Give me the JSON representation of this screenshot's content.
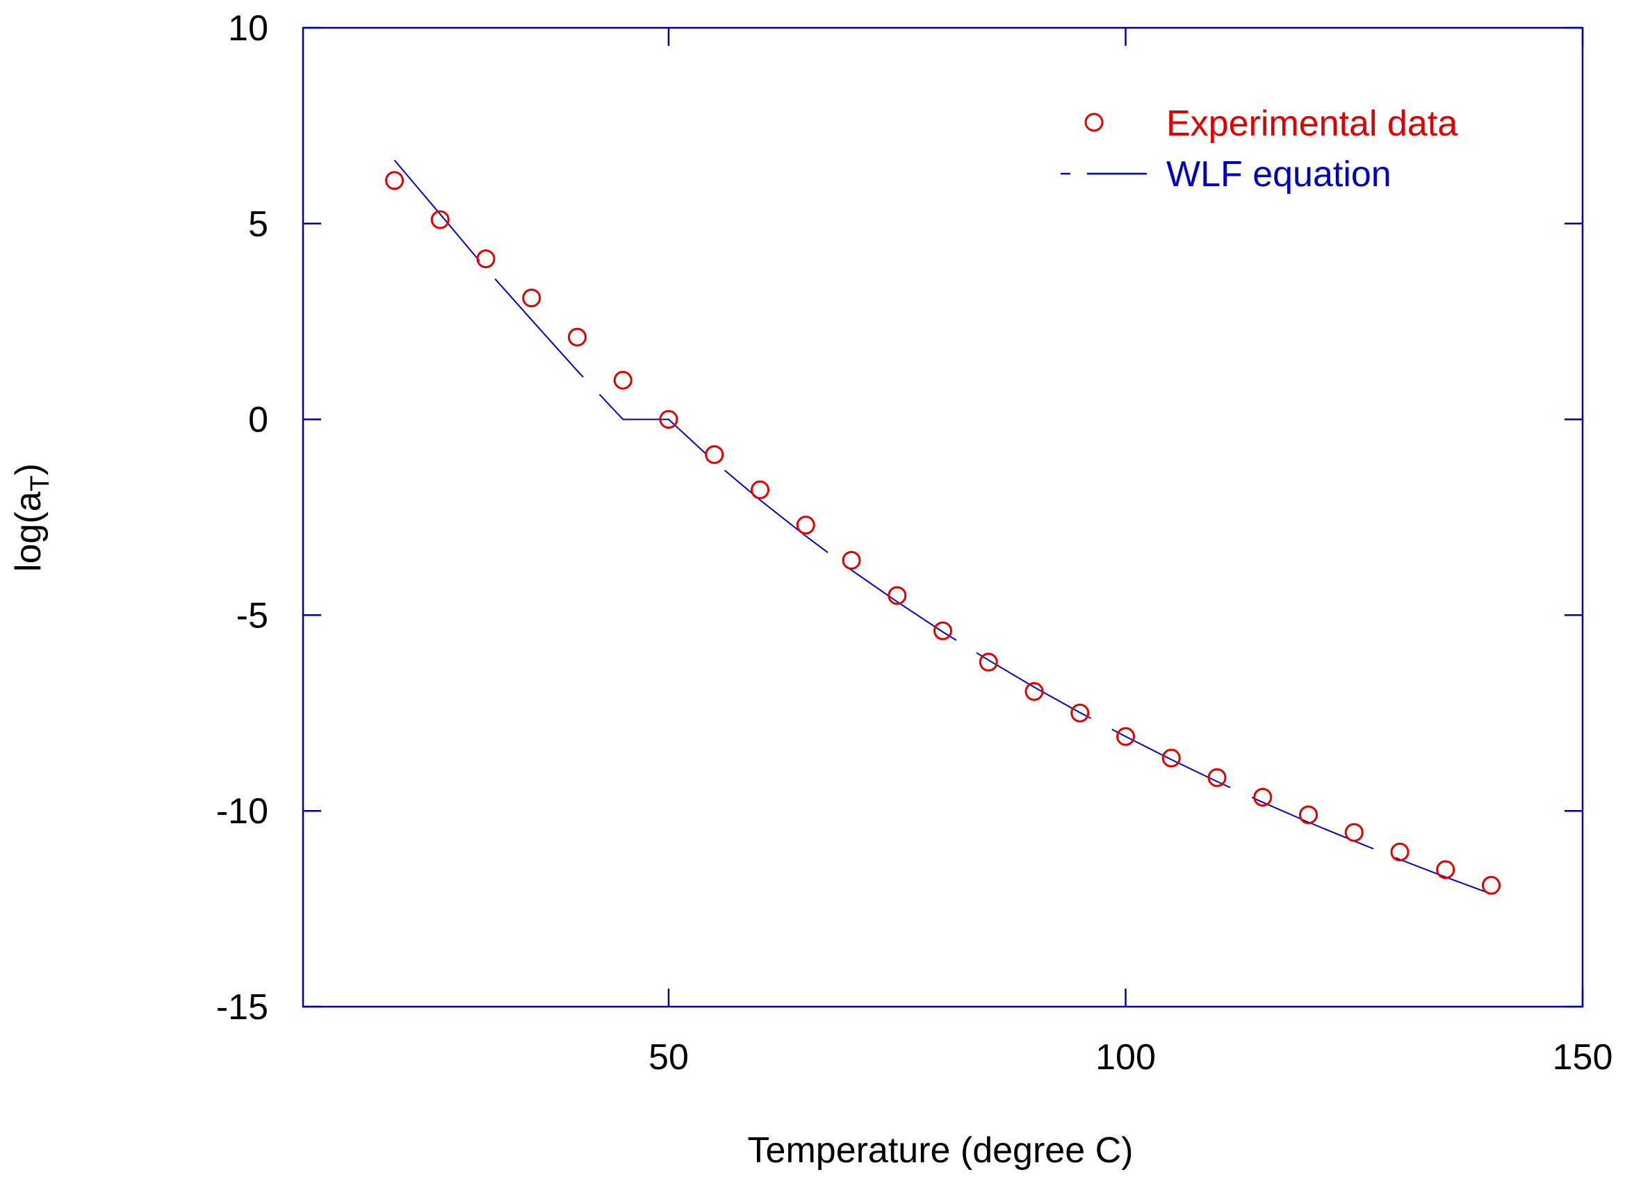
{
  "chart_data": {
    "type": "scatter",
    "title": "",
    "xlabel": "Temperature (degree C)",
    "ylabel_main": "log(a",
    "ylabel_sub": "T",
    "ylabel_close": ")",
    "xlim": [
      10,
      150
    ],
    "ylim": [
      -15,
      10
    ],
    "x_ticks": [
      50,
      100,
      150
    ],
    "x_tick_labels": [
      "50",
      "100",
      "150"
    ],
    "y_ticks": [
      -15,
      -10,
      -5,
      0,
      5,
      10
    ],
    "y_tick_labels": [
      "-15",
      "-10",
      "-5",
      "0",
      "5",
      "10"
    ],
    "grid": false,
    "legend_position": "top-right",
    "colors": {
      "axis": "#0000a0",
      "experimental": "#e00000",
      "wlf": "#0000c0",
      "tick_label": "#000000"
    },
    "series": [
      {
        "name": "Experimental data",
        "kind": "markers",
        "x": [
          20,
          25,
          30,
          35,
          40,
          45,
          50,
          55,
          60,
          65,
          70,
          75,
          80,
          85,
          90,
          95,
          100,
          105,
          110,
          115,
          120,
          125,
          130,
          135,
          140
        ],
        "y": [
          6.1,
          5.1,
          4.1,
          3.1,
          2.1,
          1.0,
          0.0,
          -0.9,
          -1.8,
          -2.7,
          -3.6,
          -4.5,
          -5.4,
          -6.2,
          -6.95,
          -7.5,
          -8.1,
          -8.65,
          -9.15,
          -9.65,
          -10.1,
          -10.55,
          -11.05,
          -11.5,
          -11.9
        ]
      },
      {
        "name": "WLF equation",
        "kind": "dashed-line",
        "x": [
          20,
          25,
          30,
          35,
          40,
          45,
          50,
          55,
          60,
          65,
          70,
          75,
          80,
          85,
          90,
          95,
          100,
          105,
          110,
          115,
          120,
          125,
          130,
          135,
          140
        ],
        "y": [
          6.62,
          5.24,
          3.85,
          2.54,
          1.24,
          0.0,
          -0.0,
          -1.08,
          -2.06,
          -2.98,
          -3.85,
          -4.66,
          -5.43,
          -6.15,
          -6.84,
          -7.49,
          -8.1,
          -8.69,
          -9.25,
          -9.78,
          -10.29,
          -10.77,
          -11.24,
          -11.69,
          -12.12
        ]
      }
    ]
  }
}
